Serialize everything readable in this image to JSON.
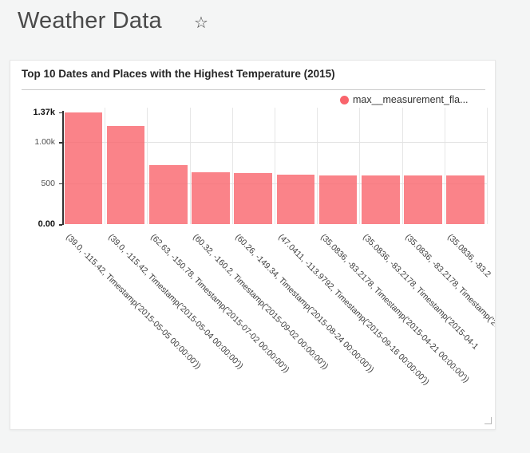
{
  "header": {
    "title": "Weather Data",
    "star_icon": "☆"
  },
  "card": {
    "title": "Top 10 Dates and Places with the Highest Temperature (2015)",
    "legend": {
      "items": [
        {
          "label": "max__measurement_fla...",
          "color": "#f9646c"
        }
      ]
    }
  },
  "chart_data": {
    "type": "bar",
    "title": "Top 10 Dates and Places with the Highest Temperature (2015)",
    "xlabel": "",
    "ylabel": "",
    "ylim": [
      0,
      1370
    ],
    "grid": true,
    "legend_position": "top-right",
    "x_label_rotation": 45,
    "bar_color": "rgba(249,100,108,0.8)",
    "categories": [
      "(39.0, -115.42, Timestamp('2015-05-05 00:00:00'))",
      "(39.0, -115.42, Timestamp('2015-05-04 00:00:00'))",
      "(62.63, -150.78, Timestamp('2015-07-02 00:00:00'))",
      "(60.32, -160.2, Timestamp('2015-09-02 00:00:00'))",
      "(60.26, -149.34, Timestamp('2015-08-24 00:00:00'))",
      "(47.0411, -113.9792, Timestamp('2015-09-16 00:00:00'))",
      "(35.0836, -83.2178, Timestamp('2015-04-21 00:00:00'))",
      "(35.0836, -83.2178, Timestamp('2015-04-1",
      "(35.0836, -83.2178, Timestamp('201",
      "(35.0836, -83.2"
    ],
    "series": [
      {
        "name": "max__measurement_fla...",
        "values": [
          1370,
          1200,
          725,
          638,
          627,
          603,
          596,
          596,
          596,
          595
        ]
      }
    ],
    "y_ticks": [
      {
        "label": "1.37k",
        "value": 1370,
        "bold": true
      },
      {
        "label": "1.00k",
        "value": 1000,
        "bold": false
      },
      {
        "label": "500",
        "value": 500,
        "bold": false
      },
      {
        "label": "0.00",
        "value": 0,
        "bold": true
      }
    ]
  }
}
